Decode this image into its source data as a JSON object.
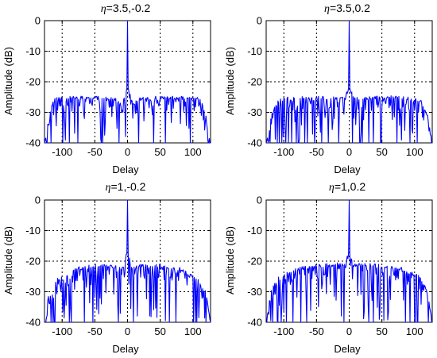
{
  "chart_data": [
    {
      "type": "line",
      "title_symbol": "η",
      "title_params": "=3.5,-0.2",
      "xlabel": "Delay",
      "ylabel": "Amplitude (dB)",
      "xlim": [
        -127,
        127
      ],
      "ylim": [
        -40,
        0
      ],
      "xticks": [
        -100,
        -50,
        0,
        50,
        100
      ],
      "yticks": [
        0,
        -10,
        -20,
        -30,
        -40
      ],
      "grid": true,
      "line_color": "#0000ff",
      "peak": {
        "x": 0,
        "y": 0
      },
      "sidelobe_profile": [
        {
          "x": -127,
          "y": -40
        },
        {
          "x": -120,
          "y": -31
        },
        {
          "x": -115,
          "y": -27
        },
        {
          "x": -110,
          "y": -25
        },
        {
          "x": -60,
          "y": -24.5
        },
        {
          "x": -20,
          "y": -25
        },
        {
          "x": -8,
          "y": -27
        },
        {
          "x": -3,
          "y": -23
        },
        {
          "x": 3,
          "y": -23
        },
        {
          "x": 8,
          "y": -27
        },
        {
          "x": 20,
          "y": -25
        },
        {
          "x": 60,
          "y": -24.5
        },
        {
          "x": 110,
          "y": -25
        },
        {
          "x": 115,
          "y": -27
        },
        {
          "x": 120,
          "y": -31
        },
        {
          "x": 127,
          "y": -40
        }
      ]
    },
    {
      "type": "line",
      "title_symbol": "η",
      "title_params": "=3.5,0.2",
      "xlabel": "Delay",
      "ylabel": "Amplitude (dB)",
      "xlim": [
        -127,
        127
      ],
      "ylim": [
        -40,
        0
      ],
      "xticks": [
        -100,
        -50,
        0,
        50,
        100
      ],
      "yticks": [
        0,
        -10,
        -20,
        -30,
        -40
      ],
      "grid": true,
      "line_color": "#0000ff",
      "peak": {
        "x": 0,
        "y": 0
      },
      "sidelobe_profile": [
        {
          "x": -127,
          "y": -40
        },
        {
          "x": -120,
          "y": -31
        },
        {
          "x": -110,
          "y": -26
        },
        {
          "x": -100,
          "y": -25
        },
        {
          "x": -60,
          "y": -24.5
        },
        {
          "x": -10,
          "y": -25
        },
        {
          "x": -3,
          "y": -23
        },
        {
          "x": 3,
          "y": -23
        },
        {
          "x": 10,
          "y": -25
        },
        {
          "x": 60,
          "y": -24.5
        },
        {
          "x": 100,
          "y": -25
        },
        {
          "x": 110,
          "y": -26
        },
        {
          "x": 120,
          "y": -31
        },
        {
          "x": 127,
          "y": -40
        }
      ]
    },
    {
      "type": "line",
      "title_symbol": "η",
      "title_params": "=1,-0.2",
      "xlabel": "Delay",
      "ylabel": "Amplitude (dB)",
      "xlim": [
        -127,
        127
      ],
      "ylim": [
        -40,
        0
      ],
      "xticks": [
        -100,
        -50,
        0,
        50,
        100
      ],
      "yticks": [
        0,
        -10,
        -20,
        -30,
        -40
      ],
      "grid": true,
      "line_color": "#0000ff",
      "peak": {
        "x": 0,
        "y": 0
      },
      "sidelobe_profile": [
        {
          "x": -127,
          "y": -40
        },
        {
          "x": -120,
          "y": -30
        },
        {
          "x": -110,
          "y": -26
        },
        {
          "x": -80,
          "y": -22
        },
        {
          "x": -50,
          "y": -21
        },
        {
          "x": -20,
          "y": -21
        },
        {
          "x": -5,
          "y": -22
        },
        {
          "x": -2,
          "y": -17
        },
        {
          "x": 2,
          "y": -17
        },
        {
          "x": 5,
          "y": -22
        },
        {
          "x": 20,
          "y": -21
        },
        {
          "x": 50,
          "y": -21
        },
        {
          "x": 80,
          "y": -22
        },
        {
          "x": 110,
          "y": -26
        },
        {
          "x": 120,
          "y": -30
        },
        {
          "x": 127,
          "y": -40
        }
      ]
    },
    {
      "type": "line",
      "title_symbol": "η",
      "title_params": "=1,0.2",
      "xlabel": "Delay",
      "ylabel": "Amplitude (dB)",
      "xlim": [
        -127,
        127
      ],
      "ylim": [
        -40,
        0
      ],
      "xticks": [
        -100,
        -50,
        0,
        50,
        100
      ],
      "yticks": [
        0,
        -10,
        -20,
        -30,
        -40
      ],
      "grid": true,
      "line_color": "#0000ff",
      "peak": {
        "x": 0,
        "y": 0
      },
      "sidelobe_profile": [
        {
          "x": -127,
          "y": -40
        },
        {
          "x": -120,
          "y": -30
        },
        {
          "x": -110,
          "y": -25
        },
        {
          "x": -80,
          "y": -22
        },
        {
          "x": -50,
          "y": -21
        },
        {
          "x": -20,
          "y": -20.5
        },
        {
          "x": -5,
          "y": -21
        },
        {
          "x": -2,
          "y": -17
        },
        {
          "x": 2,
          "y": -17
        },
        {
          "x": 5,
          "y": -21
        },
        {
          "x": 20,
          "y": -20.5
        },
        {
          "x": 50,
          "y": -21
        },
        {
          "x": 80,
          "y": -22
        },
        {
          "x": 110,
          "y": -25
        },
        {
          "x": 120,
          "y": -30
        },
        {
          "x": 127,
          "y": -40
        }
      ]
    }
  ]
}
